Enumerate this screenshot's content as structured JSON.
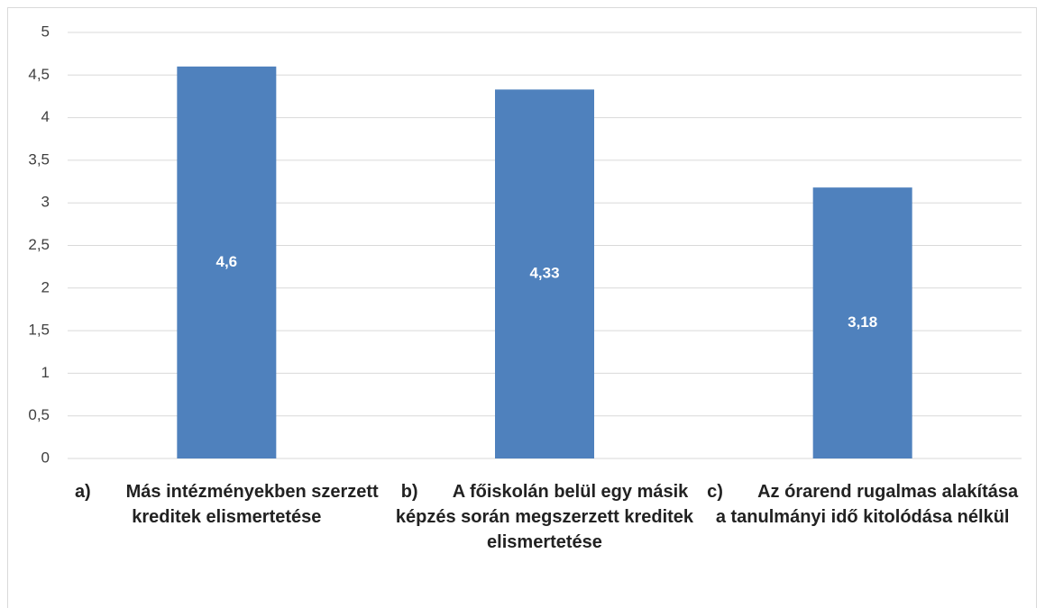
{
  "chart_data": {
    "type": "bar",
    "categories": [
      "a)       Más intézményekben szerzett kreditek elismertetése",
      "b)       A főiskolán belül egy másik képzés során megszerzett kreditek elismertetése",
      "c)       Az órarend rugalmas alakítása a tanulmányi idő kitolódása nélkül"
    ],
    "values": [
      4.6,
      4.33,
      3.18
    ],
    "value_labels": [
      "4,6",
      "4,33",
      "3,18"
    ],
    "color": "#4f81bd",
    "ylim": [
      0,
      5
    ],
    "yticks": [
      0,
      {
        "value": 0.5,
        "label": "0,5"
      },
      1,
      {
        "value": 1.5,
        "label": "1,5"
      },
      2,
      {
        "value": 2.5,
        "label": "2,5"
      },
      3,
      {
        "value": 3.5,
        "label": "3,5"
      },
      4,
      {
        "value": 4.5,
        "label": "4,5"
      },
      5
    ],
    "grid": true
  }
}
